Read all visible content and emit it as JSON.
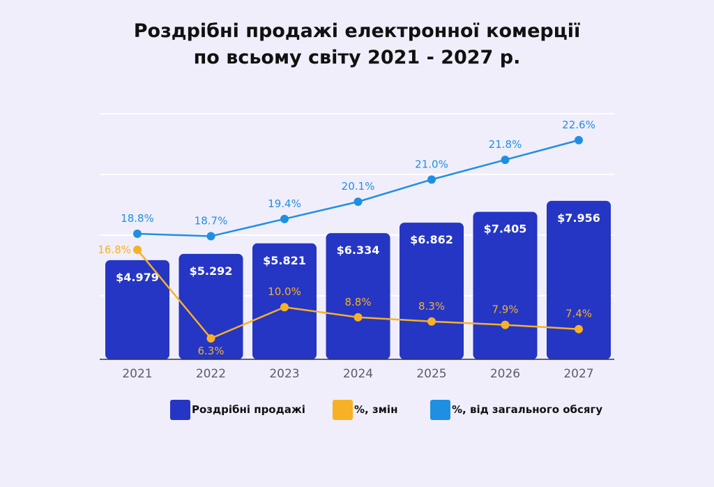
{
  "title_line1": "Роздрібні продажі електронної комерції",
  "title_line2": "по всьому світу 2021 - 2027 р.",
  "colors": {
    "background": "#f0eefb",
    "bars": "#2536c4",
    "change": "#f7b125",
    "share": "#1f8fe3"
  },
  "chart_data": {
    "type": "bar",
    "categories": [
      "2021",
      "2022",
      "2023",
      "2024",
      "2025",
      "2026",
      "2027"
    ],
    "series": [
      {
        "name": "Роздрібні продажі",
        "type": "bar",
        "values": [
          4.979,
          5.292,
          5.821,
          6.334,
          6.862,
          7.405,
          7.956
        ],
        "labels": [
          "$4.979",
          "$5.292",
          "$5.821",
          "$6.334",
          "$6.862",
          "$7.405",
          "$7.956"
        ]
      },
      {
        "name": "%, змін",
        "type": "line",
        "values": [
          16.8,
          6.3,
          10.0,
          8.8,
          8.3,
          7.9,
          7.4
        ],
        "labels": [
          "16.8%",
          "6.3%",
          "10.0%",
          "8.8%",
          "8.3%",
          "7.9%",
          "7.4%"
        ]
      },
      {
        "name": "%, від загального обсягу",
        "type": "line",
        "values": [
          18.8,
          18.7,
          19.4,
          20.1,
          21.0,
          21.8,
          22.6
        ],
        "labels": [
          "18.8%",
          "18.7%",
          "19.4%",
          "20.1%",
          "21.0%",
          "21.8%",
          "22.6%"
        ]
      }
    ],
    "grid": true,
    "legend_position": "bottom"
  }
}
